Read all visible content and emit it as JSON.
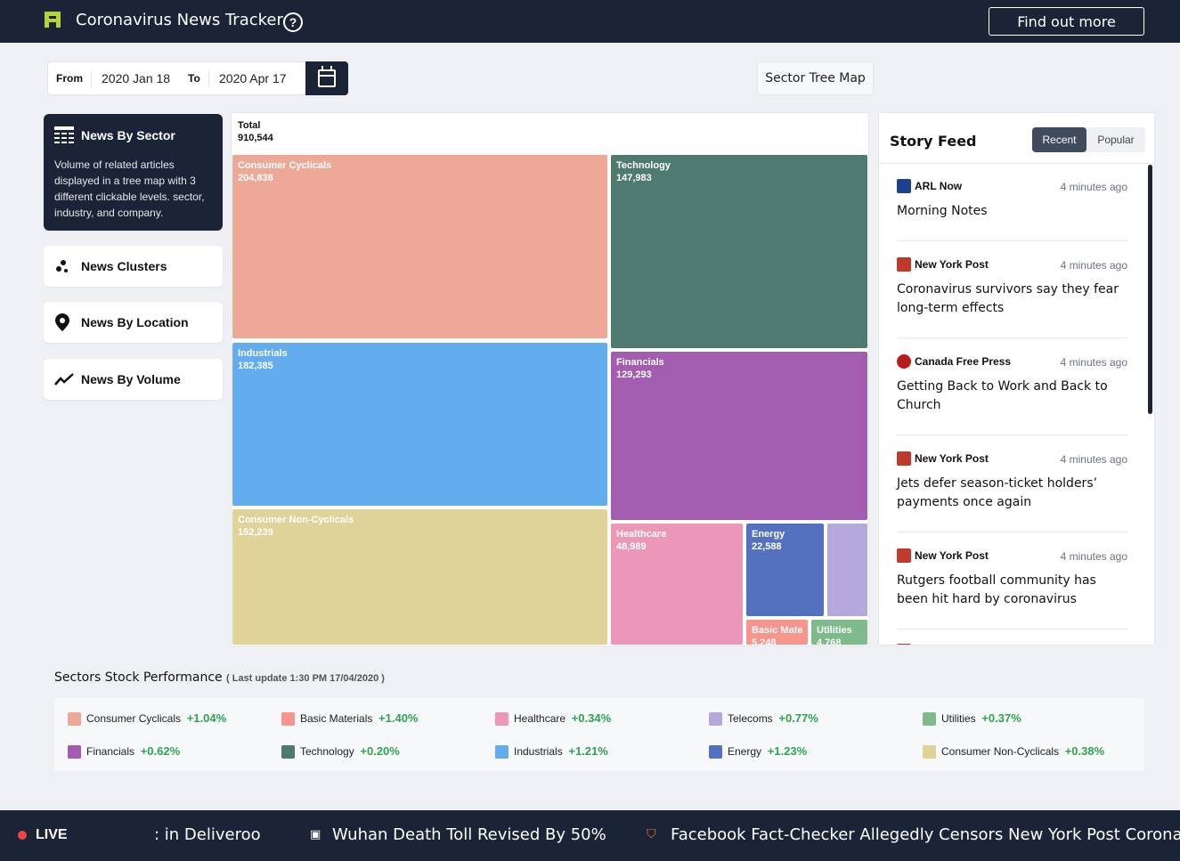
{
  "header": {
    "app_title": "Coronavirus News Tracker",
    "help_icon": "question-circle-icon",
    "find_out_more": "Find out more"
  },
  "date_range": {
    "from_label": "From",
    "from_value": "2020 Jan 18",
    "to_label": "To",
    "to_value": "2020 Apr 17",
    "calendar_icon": "calendar-icon"
  },
  "view_selector": "Sector Tree Map",
  "nav": {
    "items": [
      {
        "label": "News By Sector",
        "icon": "table-icon",
        "description": "Volume of related articles displayed in a tree map with 3 different clickable levels. sector, industry, and company."
      },
      {
        "label": "News Clusters",
        "icon": "clusters-icon"
      },
      {
        "label": "News By Location",
        "icon": "map-pin-icon"
      },
      {
        "label": "News By Volume",
        "icon": "trend-line-icon"
      }
    ]
  },
  "treemap": {
    "total_label": "Total",
    "total_value": "910,544",
    "tiles": [
      {
        "name": "Consumer Cyclicals",
        "value": "204,838",
        "color": "#eda898"
      },
      {
        "name": "Technology",
        "value": "147,983",
        "color": "#4f7a70"
      },
      {
        "name": "Industrials",
        "value": "182,385",
        "color": "#63acee"
      },
      {
        "name": "Financials",
        "value": "129,293",
        "color": "#a25cb0"
      },
      {
        "name": "Consumer Non-Cyclicals",
        "value": "152,239",
        "color": "#e0d399"
      },
      {
        "name": "Healthcare",
        "value": "48,989",
        "color": "#ec97b7"
      },
      {
        "name": "Energy",
        "value": "22,588",
        "color": "#5471bf"
      },
      {
        "name": "",
        "value": "",
        "color": "#b4a8dc"
      },
      {
        "name": "Basic Mate",
        "value": "5,248",
        "color": "#f5958e"
      },
      {
        "name": "Utilities",
        "value": "4,768",
        "color": "#7fba8c"
      }
    ]
  },
  "story_feed": {
    "title": "Story Feed",
    "tab_recent": "Recent",
    "tab_popular": "Popular",
    "stories": [
      {
        "source": "ARL Now",
        "time": "4 minutes ago",
        "headline": "Morning Notes",
        "icon_color": "#1c3f8f"
      },
      {
        "source": "New York Post",
        "time": "4 minutes ago",
        "headline": "Coronavirus survivors say they fear long-term effects",
        "icon_color": "#c0392b"
      },
      {
        "source": "Canada Free Press",
        "time": "4 minutes ago",
        "headline": "Getting Back to Work and Back to Church",
        "icon_color": "#b91c1c"
      },
      {
        "source": "New York Post",
        "time": "4 minutes ago",
        "headline": "Jets defer season-ticket holders’ payments once again",
        "icon_color": "#c0392b"
      },
      {
        "source": "New York Post",
        "time": "4 minutes ago",
        "headline": "Rutgers football community has been hit hard by coronavirus",
        "icon_color": "#c0392b"
      }
    ]
  },
  "performance": {
    "title": "Sectors Stock Performance",
    "last_update": "( Last update 1:30 PM 17/04/2020 )",
    "items": [
      {
        "name": "Consumer Cyclicals",
        "change": "+1.04%",
        "color": "#eda898"
      },
      {
        "name": "Basic Materials",
        "change": "+1.40%",
        "color": "#f5958e"
      },
      {
        "name": "Healthcare",
        "change": "+0.34%",
        "color": "#ec97b7"
      },
      {
        "name": "Telecoms",
        "change": "+0.77%",
        "color": "#b4a8dc"
      },
      {
        "name": "Utilities",
        "change": "+0.37%",
        "color": "#7fba8c"
      },
      {
        "name": "Financials",
        "change": "+0.62%",
        "color": "#a25cb0"
      },
      {
        "name": "Technology",
        "change": "+0.20%",
        "color": "#4f7a70"
      },
      {
        "name": "Industrials",
        "change": "+1.21%",
        "color": "#63acee"
      },
      {
        "name": "Energy",
        "change": "+1.23%",
        "color": "#5471bf"
      },
      {
        "name": "Consumer Non-Cyclicals",
        "change": "+0.38%",
        "color": "#e0d399"
      }
    ]
  },
  "ticker": {
    "live_label": "LIVE",
    "items": [
      ": in Deliveroo",
      "Wuhan Death Toll Revised By 50%",
      "Facebook Fact-Checker Allegedly Censors New York Post Coronavi"
    ]
  }
}
